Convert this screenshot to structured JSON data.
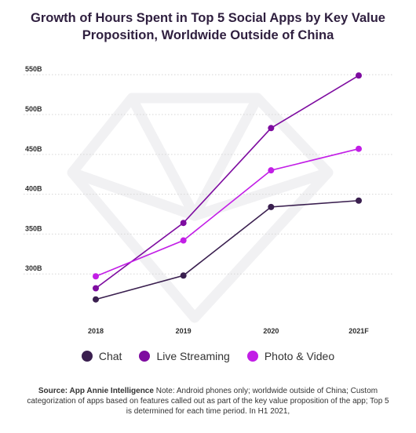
{
  "chart_data": {
    "type": "line",
    "title": "Growth of Hours Spent in Top 5 Social Apps by Key Value Proposition, Worldwide Outside of China",
    "categories": [
      "2018",
      "2019",
      "2020",
      "2021F"
    ],
    "y_ticks": [
      "300B",
      "350B",
      "400B",
      "450B",
      "500B",
      "550B"
    ],
    "ylim": [
      250,
      565
    ],
    "grid": "horizontal dotted",
    "legend_position": "bottom",
    "series": [
      {
        "name": "Chat",
        "color": "#3a1f4f",
        "values": [
          268,
          298,
          384,
          392
        ]
      },
      {
        "name": "Live Streaming",
        "color": "#7e0ca0",
        "values": [
          282,
          364,
          483,
          549
        ]
      },
      {
        "name": "Photo & Video",
        "color": "#c21ee6",
        "values": [
          297,
          342,
          430,
          457
        ]
      }
    ]
  },
  "source": {
    "label": "Source: App Annie Intelligence",
    "text": " Note: Android phones only;  worldwide outside of China; Custom categorization of apps based on features called out as part of the key value proposition of the app; Top 5 is determined for each time period. In H1 2021,"
  }
}
